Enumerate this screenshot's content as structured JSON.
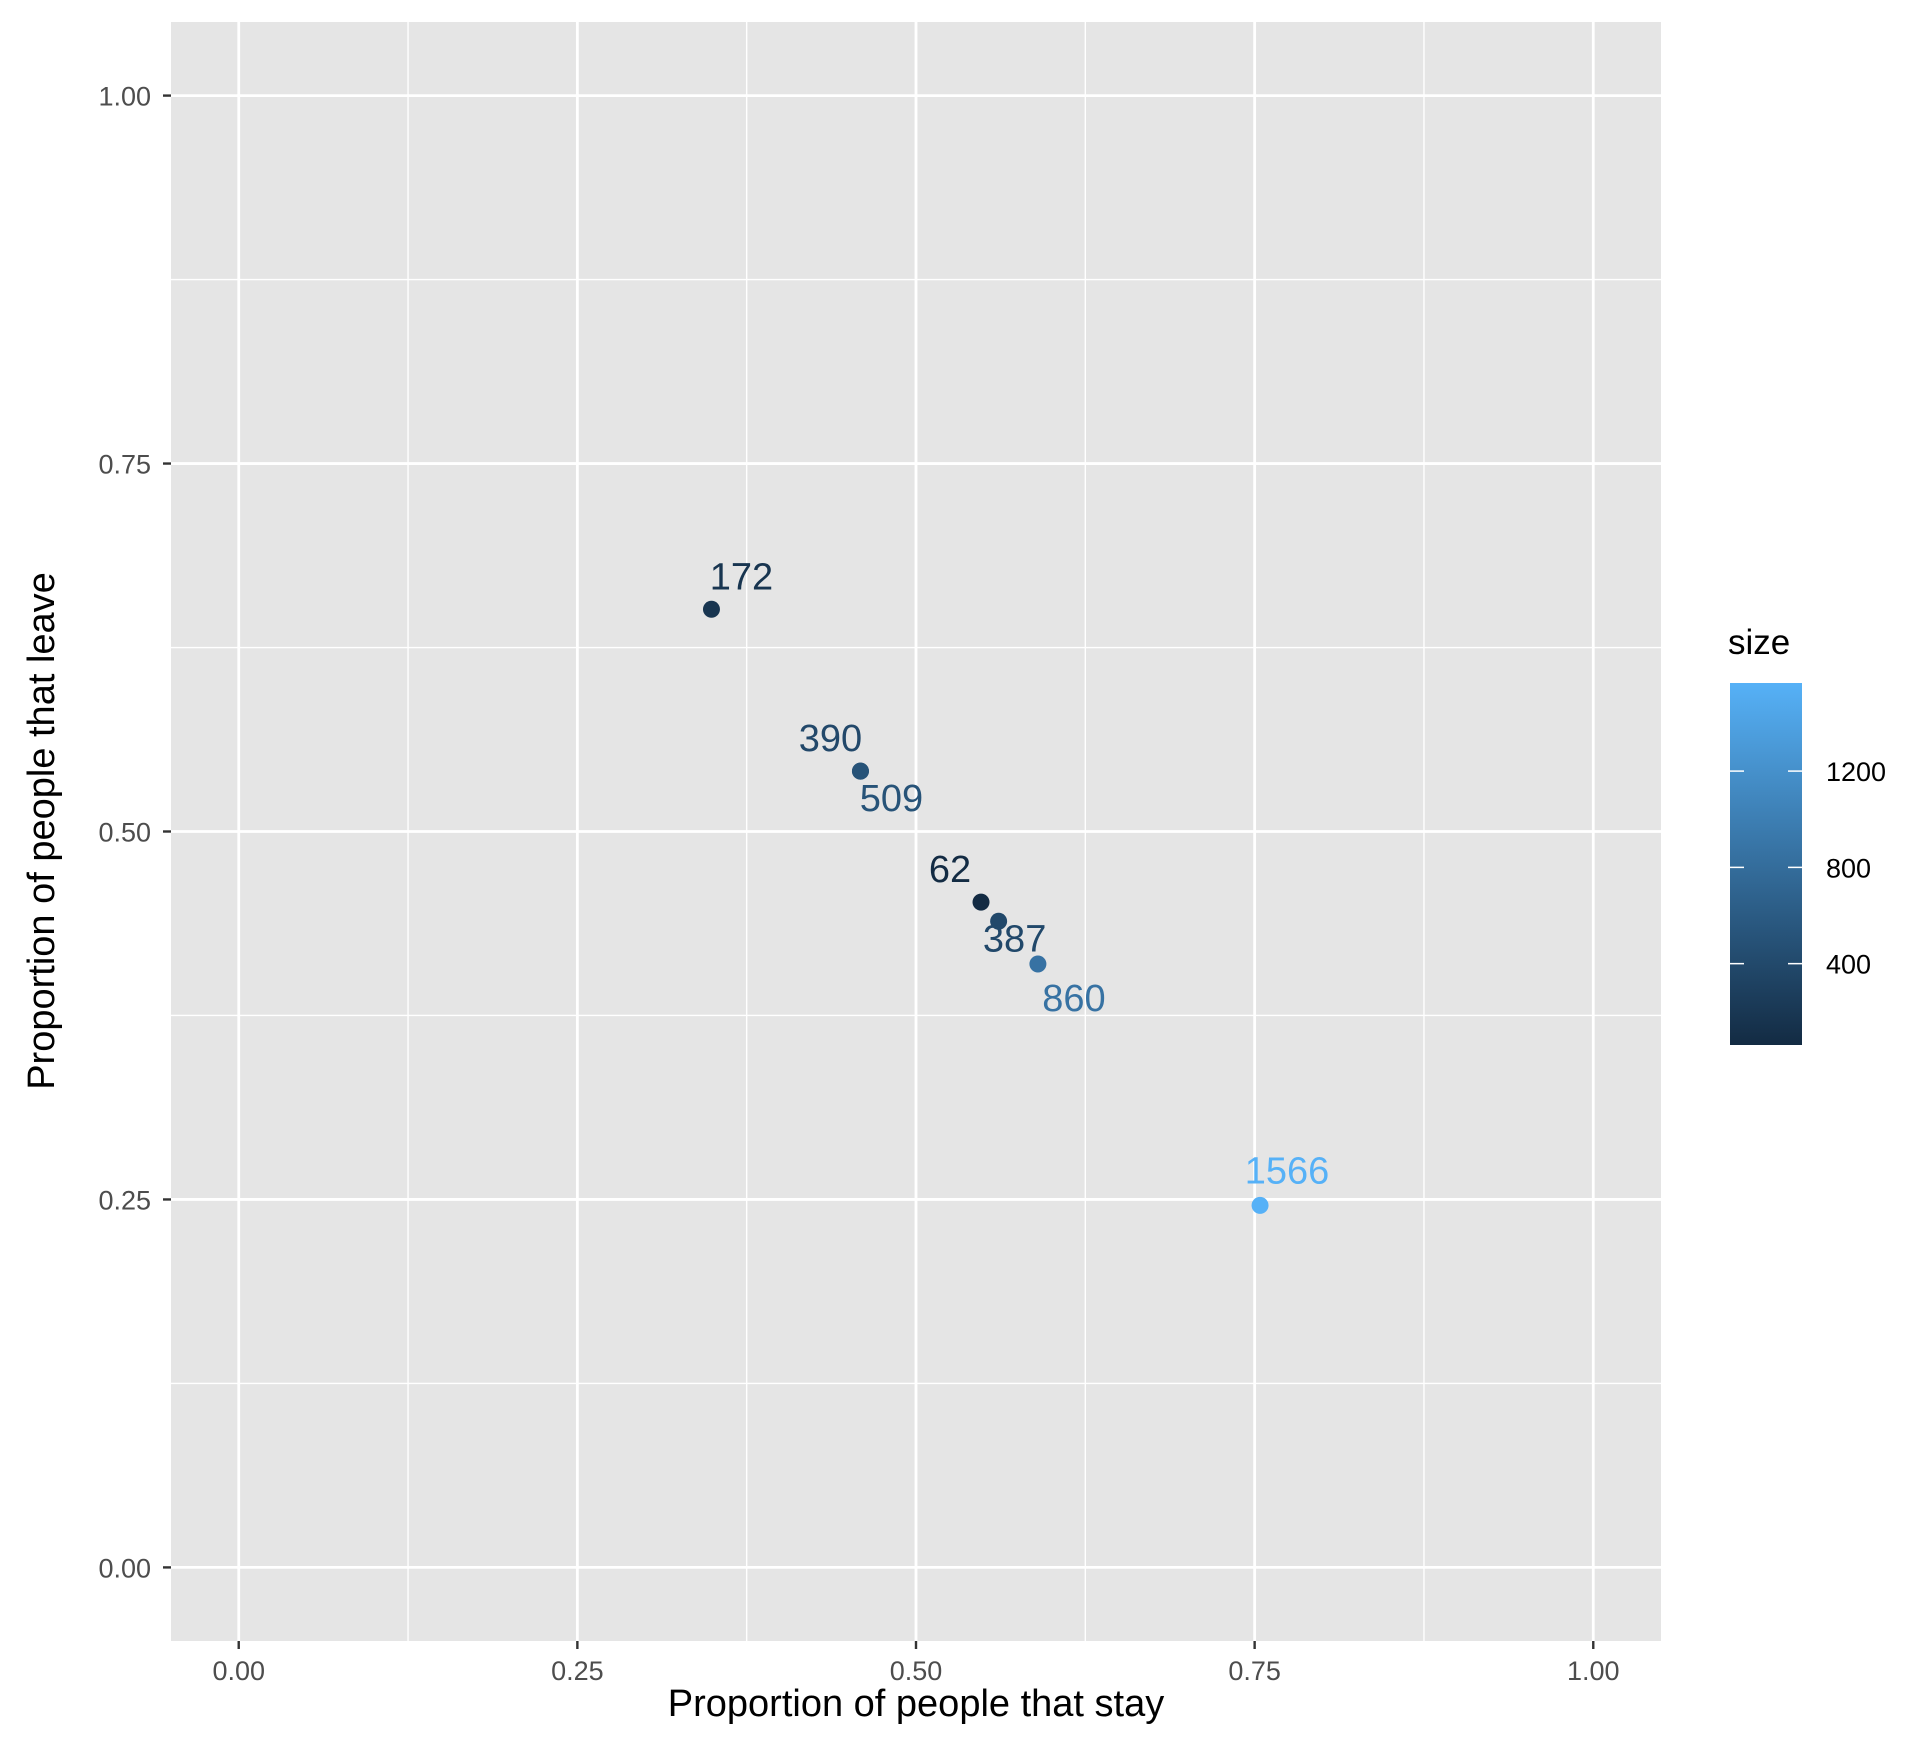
{
  "chart_data": {
    "type": "scatter",
    "xlabel": "Proportion of people that stay",
    "ylabel": "Proportion of people that leave",
    "xlim": [
      -0.05,
      1.05
    ],
    "ylim": [
      -0.05,
      1.05
    ],
    "x_ticks": [
      "0.00",
      "0.25",
      "0.50",
      "0.75",
      "1.00"
    ],
    "y_ticks": [
      "0.00",
      "0.25",
      "0.50",
      "0.75",
      "1.00"
    ],
    "grid": true,
    "points": [
      {
        "x": 0.349,
        "y": 0.651,
        "size": 172,
        "label": "172"
      },
      {
        "x": 0.459,
        "y": 0.541,
        "size": 390,
        "label": "390"
      },
      {
        "x": 0.459,
        "y": 0.541,
        "size": 509,
        "label": "509"
      },
      {
        "x": 0.548,
        "y": 0.452,
        "size": 62,
        "label": "62"
      },
      {
        "x": 0.561,
        "y": 0.439,
        "size": 387,
        "label": "387"
      },
      {
        "x": 0.59,
        "y": 0.41,
        "size": 860,
        "label": "860"
      },
      {
        "x": 0.754,
        "y": 0.246,
        "size": 1566,
        "label": "1566"
      }
    ],
    "legend": {
      "title": "size",
      "type": "colorbar",
      "position": "right",
      "min": 62,
      "max": 1566,
      "ticks": [
        400,
        800,
        1200
      ],
      "tick_labels": [
        "400",
        "800",
        "1200"
      ],
      "color_low": "#132B43",
      "color_high": "#56B1F7"
    }
  }
}
